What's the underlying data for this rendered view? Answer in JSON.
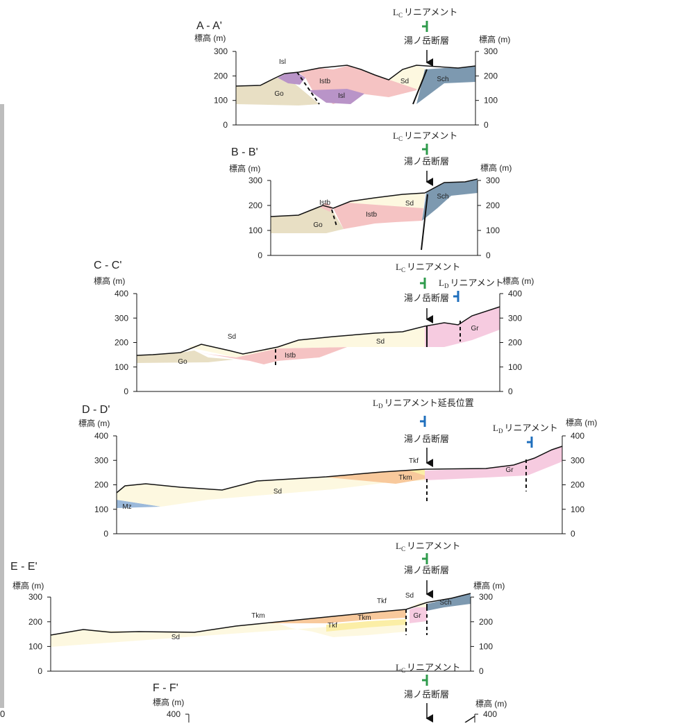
{
  "edge_text": "0",
  "sections": [
    {
      "title": "A - A'",
      "axis_label_left": "標高 (m)",
      "axis_label_right": "標高 (m)",
      "ticks": [
        300,
        200,
        100,
        0
      ],
      "lineaments": [
        {
          "letter": "L",
          "sub": "C",
          "name": "リニアメント"
        }
      ],
      "fault": "湯ノ岳断層",
      "units": [
        "Isl",
        "Istb",
        "Go",
        "Isl",
        "Sd",
        "Sch"
      ]
    },
    {
      "title": "B - B'",
      "axis_label_left": "標高 (m)",
      "axis_label_right": "標高 (m)",
      "ticks": [
        300,
        200,
        100,
        0
      ],
      "lineaments": [
        {
          "letter": "L",
          "sub": "C",
          "name": "リニアメント"
        }
      ],
      "fault": "湯ノ岳断層",
      "units": [
        "Istb",
        "Go",
        "Istb",
        "Sd",
        "Sch"
      ]
    },
    {
      "title": "C - C'",
      "axis_label_left": "標高 (m)",
      "axis_label_right": "標高 (m)",
      "ticks": [
        400,
        300,
        200,
        100,
        0
      ],
      "lineaments": [
        {
          "letter": "L",
          "sub": "C",
          "name": "リニアメント"
        },
        {
          "letter": "L",
          "sub": "D",
          "name": "リニアメント"
        }
      ],
      "fault": "湯ノ岳断層",
      "units": [
        "Sd",
        "Go",
        "Istb",
        "Sd",
        "Gr"
      ]
    },
    {
      "title": "D - D'",
      "axis_label_left": "標高 (m)",
      "axis_label_right": "標高 (m)",
      "ticks": [
        400,
        300,
        200,
        100,
        0
      ],
      "lineaments": [
        {
          "letter": "L",
          "sub": "D",
          "name": "リニアメント延長位置"
        },
        {
          "letter": "L",
          "sub": "D",
          "name": "リニアメント"
        }
      ],
      "fault": "湯ノ岳断層",
      "units": [
        "Tkf",
        "Tkm",
        "Gr",
        "Sd",
        "Mz"
      ]
    },
    {
      "title": "E - E'",
      "axis_label_left": "標高 (m)",
      "axis_label_right": "標高 (m)",
      "ticks": [
        300,
        200,
        100,
        0
      ],
      "lineaments": [
        {
          "letter": "L",
          "sub": "C",
          "name": "リニアメント"
        }
      ],
      "fault": "湯ノ岳断層",
      "units": [
        "Tkm",
        "Sd",
        "Tkf",
        "Tkm",
        "Tkf",
        "Sd",
        "Gr",
        "Sch"
      ]
    },
    {
      "title": "F - F'",
      "axis_label_left": "標高 (m)",
      "axis_label_right": "標高 (m)",
      "ticks": [
        400
      ],
      "lineaments": [
        {
          "letter": "L",
          "sub": "C",
          "name": "リニアメント"
        }
      ],
      "fault": "湯ノ岳断層",
      "units": []
    }
  ]
}
